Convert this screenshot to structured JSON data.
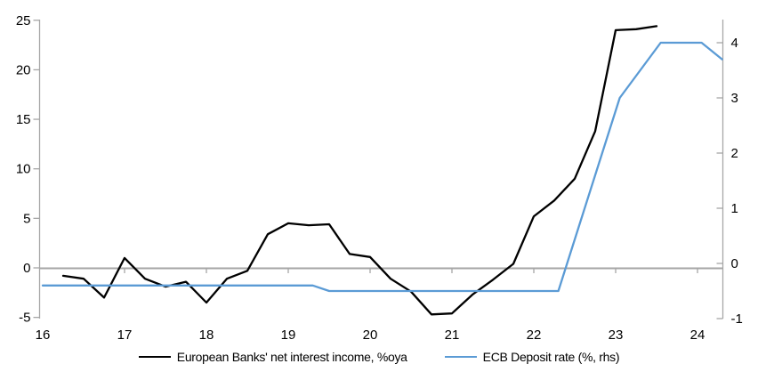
{
  "chart_data": {
    "type": "line",
    "title": "",
    "x_axis": {
      "range": [
        16,
        24.35
      ],
      "tick_values": [
        17,
        18,
        19,
        20,
        21,
        22,
        23,
        24
      ],
      "tick_labels": [
        "16",
        "17",
        "18",
        "19",
        "20",
        "21",
        "22",
        "23",
        "24"
      ],
      "label_values": [
        16,
        17,
        18,
        19,
        20,
        21,
        22,
        23,
        24
      ]
    },
    "left_axis": {
      "range": [
        -5,
        25
      ],
      "tick_values": [
        -5,
        0,
        5,
        10,
        15,
        20,
        25
      ],
      "tick_labels": [
        "-5",
        "0",
        "5",
        "10",
        "15",
        "20",
        "25"
      ]
    },
    "right_axis": {
      "range": [
        -1.1,
        4.45
      ],
      "tick_values": [
        -1,
        0,
        1,
        2,
        3,
        4
      ],
      "tick_labels": [
        "-1",
        "0",
        "1",
        "2",
        "3",
        "4"
      ]
    },
    "grid": "zero-line-only",
    "legend_position": "bottom-center",
    "colors": {
      "series_black": "#000000",
      "series_blue": "#5B9BD5",
      "axis_gray": "#A6A6A6",
      "label_black": "#000000"
    },
    "series": [
      {
        "name": "European Banks' net interest income, %oya",
        "axis": "left",
        "color": "#000000",
        "points": [
          [
            16.25,
            -0.8
          ],
          [
            16.5,
            -1.1
          ],
          [
            16.75,
            -3.0
          ],
          [
            17.0,
            1.0
          ],
          [
            17.25,
            -1.1
          ],
          [
            17.5,
            -1.9
          ],
          [
            17.75,
            -1.4
          ],
          [
            18.0,
            -3.5
          ],
          [
            18.25,
            -1.1
          ],
          [
            18.5,
            -0.3
          ],
          [
            18.75,
            3.4
          ],
          [
            19.0,
            4.5
          ],
          [
            19.25,
            4.3
          ],
          [
            19.5,
            4.4
          ],
          [
            19.75,
            1.4
          ],
          [
            20.0,
            1.1
          ],
          [
            20.25,
            -1.1
          ],
          [
            20.5,
            -2.4
          ],
          [
            20.75,
            -4.7
          ],
          [
            21.0,
            -4.6
          ],
          [
            21.25,
            -2.7
          ],
          [
            21.5,
            -1.2
          ],
          [
            21.75,
            0.4
          ],
          [
            22.0,
            5.2
          ],
          [
            22.25,
            6.8
          ],
          [
            22.5,
            9.0
          ],
          [
            22.75,
            13.8
          ],
          [
            23.0,
            24.0
          ],
          [
            23.25,
            24.1
          ],
          [
            23.5,
            24.4
          ]
        ]
      },
      {
        "name": "ECB Deposit rate (%, rhs)",
        "axis": "right",
        "color": "#5B9BD5",
        "points": [
          [
            16.0,
            -0.4
          ],
          [
            19.3,
            -0.4
          ],
          [
            19.5,
            -0.5
          ],
          [
            22.3,
            -0.5
          ],
          [
            23.05,
            3.0
          ],
          [
            23.55,
            4.0
          ],
          [
            24.05,
            4.0
          ],
          [
            24.3,
            3.7
          ]
        ]
      }
    ]
  }
}
